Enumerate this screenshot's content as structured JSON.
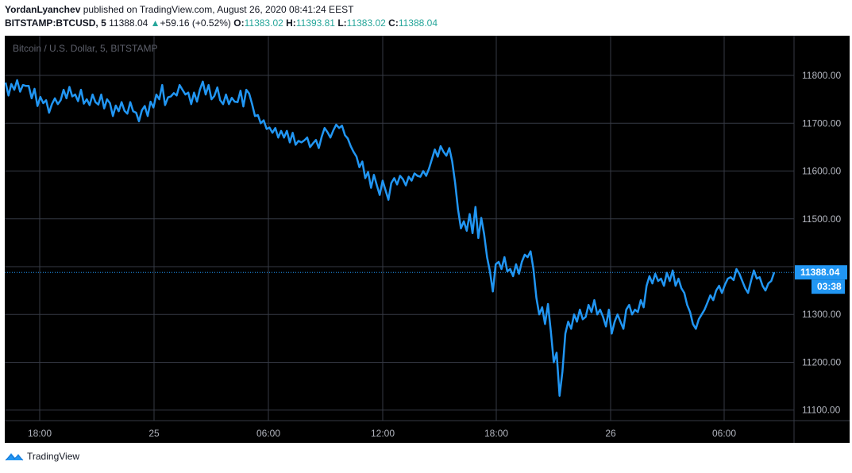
{
  "header": {
    "author": "YordanLyanchev",
    "published_text": "published on TradingView.com, August 26, 2020 08:41:24 EEST",
    "symbol": "BITSTAMP:BTCUSD, 5",
    "last_price": "11388.04",
    "change_arrow": "▲",
    "change": "+59.16 (+0.52%)",
    "o_label": "O:",
    "o_value": "11383.02",
    "h_label": "H:",
    "h_value": "11393.81",
    "l_label": "L:",
    "l_value": "11383.02",
    "c_label": "C:",
    "c_value": "11388.04"
  },
  "footer": {
    "brand": "TradingView"
  },
  "colors": {
    "background": "#000000",
    "grid": "#363a45",
    "line": "#2196f3",
    "text": "#b2b5be",
    "up": "#26a69a",
    "watermark": "#5d606b"
  },
  "chart_data": {
    "type": "line",
    "watermark": "Bitcoin / U.S. Dollar, 5, BITSTAMP",
    "series": [
      {
        "x": [
          0,
          3,
          6,
          9,
          12,
          15,
          18,
          21,
          24,
          27,
          30,
          33,
          36,
          39,
          42,
          45,
          48,
          51,
          54,
          57,
          60,
          63,
          66,
          69,
          72,
          75,
          78,
          81,
          84,
          87,
          90,
          93,
          96,
          99,
          102,
          105,
          108,
          111,
          114,
          117,
          120,
          123,
          126,
          129,
          132,
          135,
          138,
          141,
          144,
          147,
          150,
          153,
          156,
          159,
          162,
          165,
          168,
          171,
          174,
          177,
          180,
          183,
          186,
          189,
          192,
          195,
          198,
          201,
          204,
          207,
          210,
          213,
          216,
          219,
          222,
          225,
          228,
          231,
          234,
          237,
          240,
          243,
          246,
          249,
          252,
          255,
          258,
          261,
          264,
          267,
          270,
          273,
          276,
          279,
          282,
          285,
          288,
          291,
          294
        ],
        "values": [
          11785,
          11758,
          11782,
          11770,
          11790,
          11766,
          11780,
          11778,
          11778,
          11752,
          11772,
          11736,
          11755,
          11742,
          11748,
          11722,
          11740,
          11752,
          11740,
          11748,
          11770,
          11752,
          11776,
          11756,
          11760,
          11746,
          11770,
          11741,
          11750,
          11738,
          11760,
          11744,
          11739,
          11760,
          11731,
          11750,
          11742,
          11715,
          11737,
          11725,
          11744,
          11726,
          11720,
          11744,
          11725,
          11722,
          11704,
          11727,
          11736,
          11715,
          11745,
          11733,
          11760,
          11750,
          11780,
          11738,
          11754,
          11756,
          11763,
          11758,
          11780,
          11770,
          11760,
          11764,
          11740,
          11764,
          11745,
          11770,
          11787,
          11760,
          11780,
          11750,
          11757,
          11775,
          11748,
          11740,
          11760,
          11740,
          11753,
          11745,
          11744,
          11768,
          11735,
          11770,
          11762,
          11740,
          11715,
          11717,
          11700,
          11706,
          11688,
          11691,
          11680,
          11690,
          11670,
          11684,
          11670,
          11684,
          11660
        ],
        "stroke_note": "part 1"
      }
    ],
    "price_axis": {
      "ticks": [
        11800,
        11700,
        11600,
        11500,
        11300,
        11200,
        11100
      ],
      "label_format": "0.00"
    },
    "ylim": [
      11078,
      11883
    ],
    "time_axis": {
      "ticks": [
        "18:00",
        "25",
        "06:00",
        "12:00",
        "18:00",
        "26",
        "06:00"
      ]
    },
    "last_value": "11388.04",
    "countdown": "03:38",
    "grid": true
  }
}
